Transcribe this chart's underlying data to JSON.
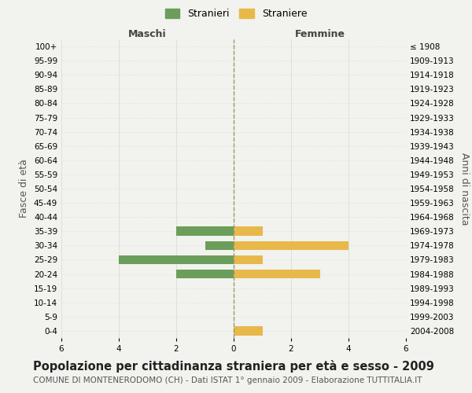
{
  "age_groups": [
    "100+",
    "95-99",
    "90-94",
    "85-89",
    "80-84",
    "75-79",
    "70-74",
    "65-69",
    "60-64",
    "55-59",
    "50-54",
    "45-49",
    "40-44",
    "35-39",
    "30-34",
    "25-29",
    "20-24",
    "15-19",
    "10-14",
    "5-9",
    "0-4"
  ],
  "birth_years": [
    "≤ 1908",
    "1909-1913",
    "1914-1918",
    "1919-1923",
    "1924-1928",
    "1929-1933",
    "1934-1938",
    "1939-1943",
    "1944-1948",
    "1949-1953",
    "1954-1958",
    "1959-1963",
    "1964-1968",
    "1969-1973",
    "1974-1978",
    "1979-1983",
    "1984-1988",
    "1989-1993",
    "1994-1998",
    "1999-2003",
    "2004-2008"
  ],
  "maschi": [
    0,
    0,
    0,
    0,
    0,
    0,
    0,
    0,
    0,
    0,
    0,
    0,
    0,
    2,
    1,
    4,
    2,
    0,
    0,
    0,
    0
  ],
  "femmine": [
    0,
    0,
    0,
    0,
    0,
    0,
    0,
    0,
    0,
    0,
    0,
    0,
    0,
    1,
    4,
    1,
    3,
    0,
    0,
    0,
    1
  ],
  "color_maschi": "#6a9e5a",
  "color_femmine": "#e8b84b",
  "xlim": 6,
  "xlabel_left": "Maschi",
  "xlabel_right": "Femmine",
  "ylabel_left": "Fasce di età",
  "ylabel_right": "Anni di nascita",
  "title": "Popolazione per cittadinanza straniera per età e sesso - 2009",
  "subtitle": "COMUNE DI MONTENERODOMO (CH) - Dati ISTAT 1° gennaio 2009 - Elaborazione TUTTITALIA.IT",
  "legend_maschi": "Stranieri",
  "legend_femmine": "Straniere",
  "background_color": "#f2f2ee",
  "grid_color": "#d8d8d8",
  "center_line_color": "#999966",
  "tick_fontsize": 7.5,
  "label_fontsize": 9,
  "title_fontsize": 10.5,
  "subtitle_fontsize": 7.5
}
